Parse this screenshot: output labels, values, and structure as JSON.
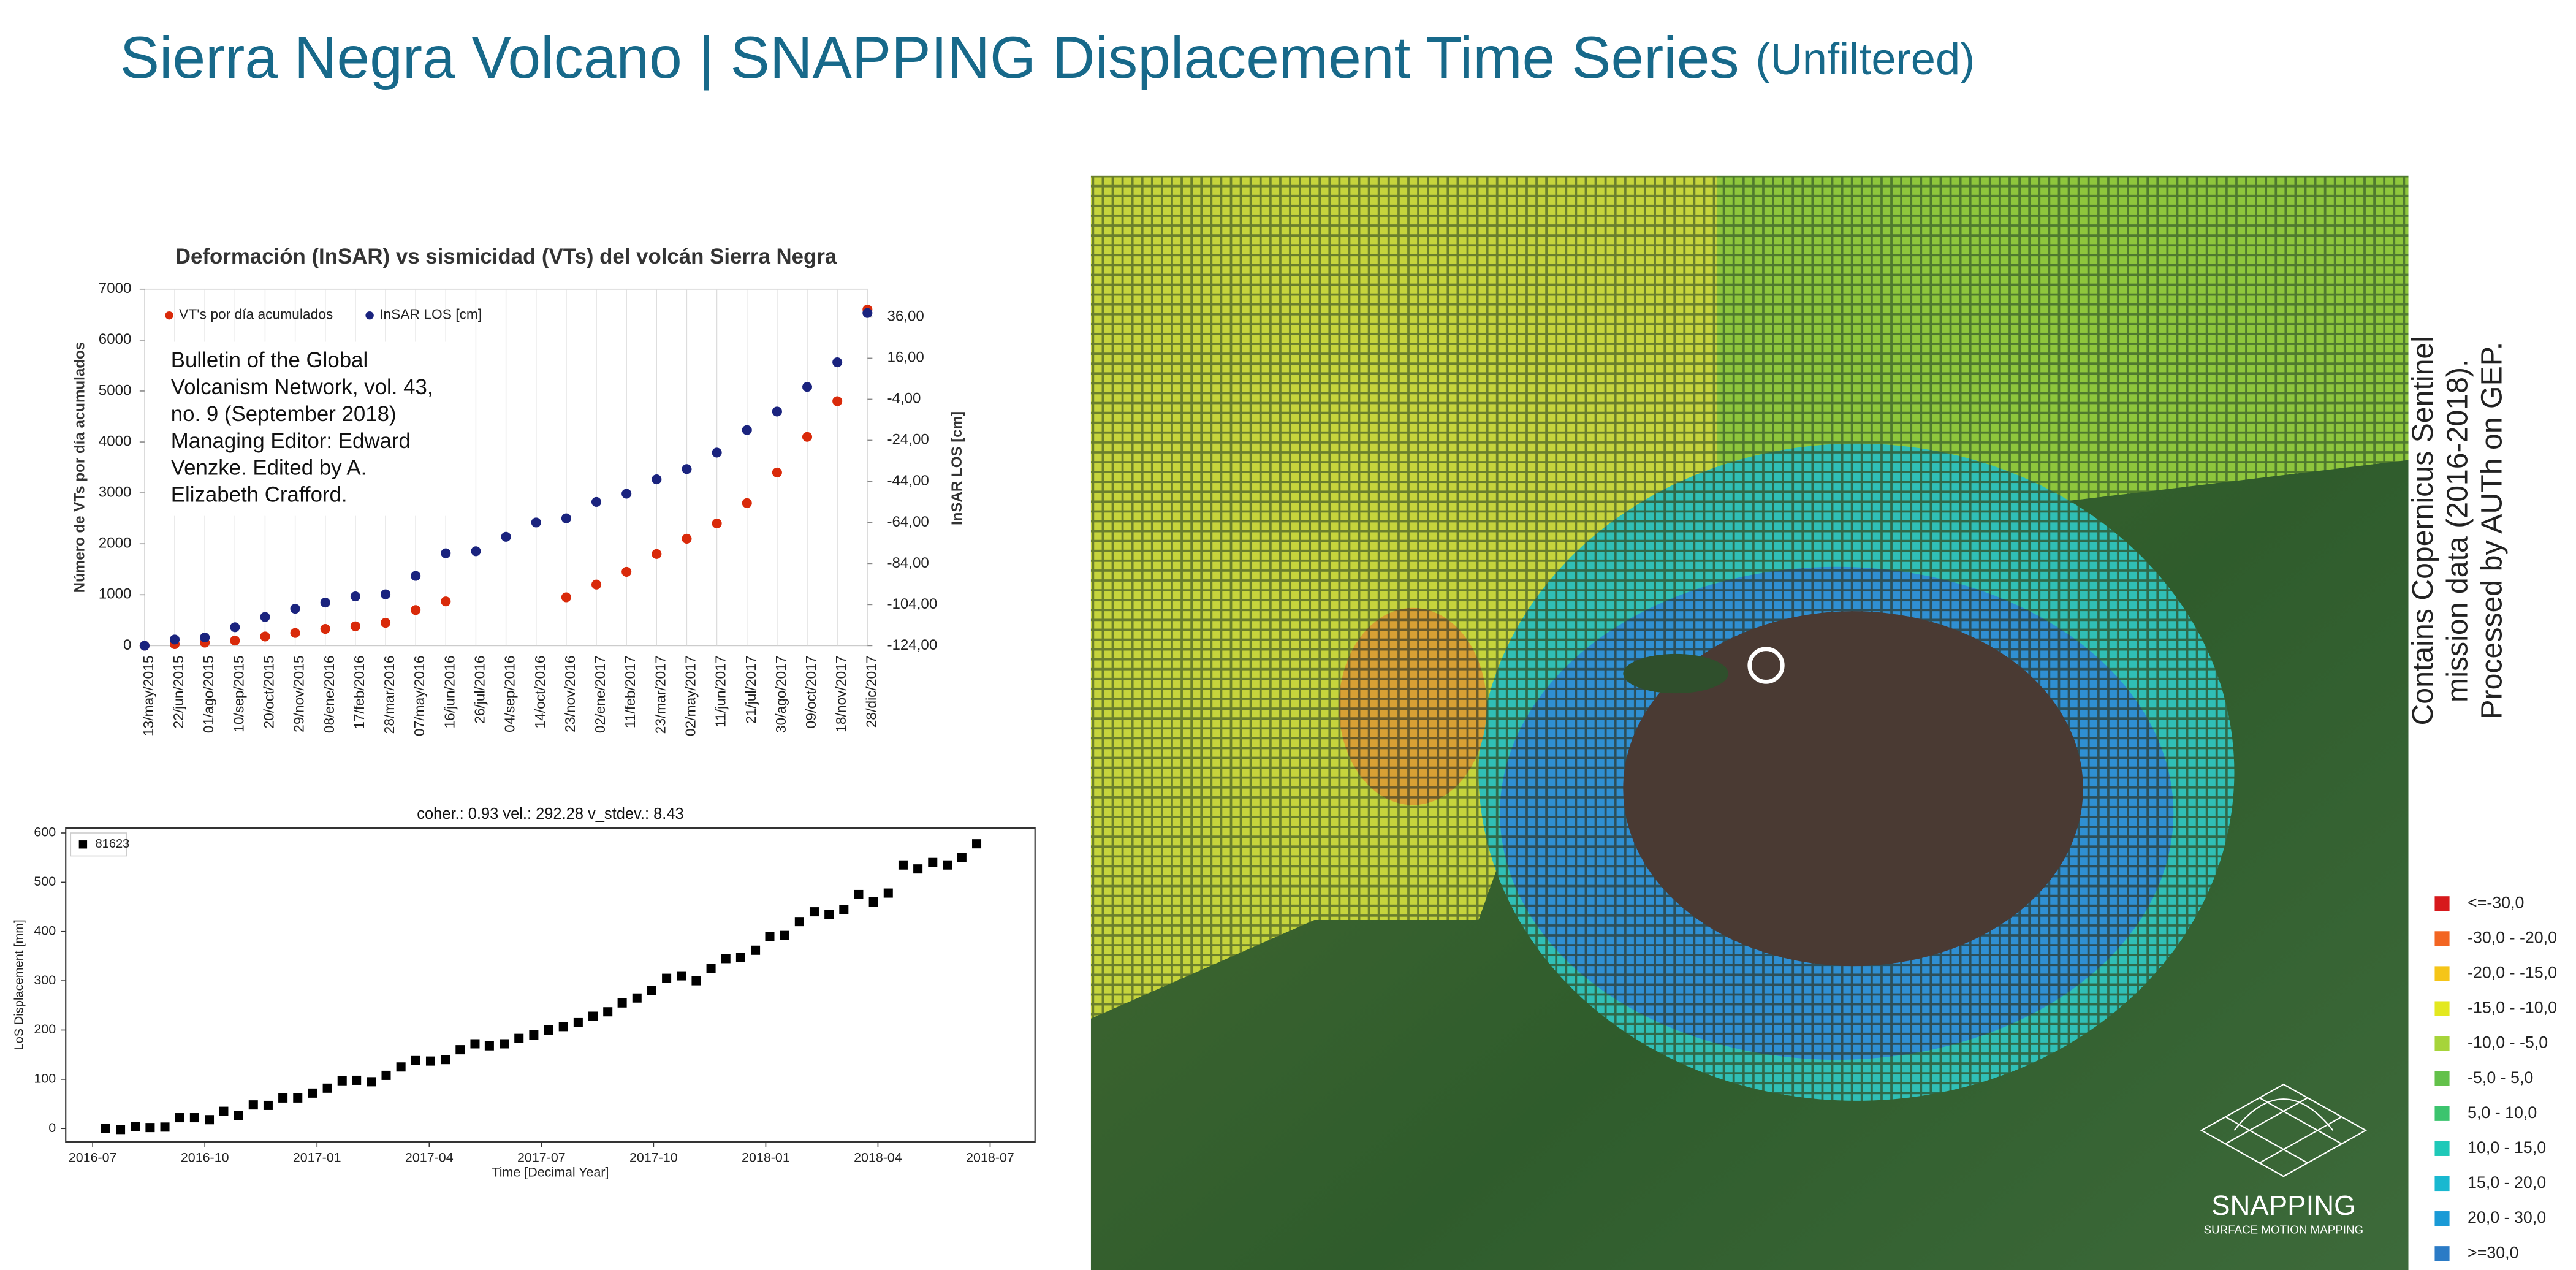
{
  "title": "Sierra Negra Volcano | SNAPPING Displacement Time Series",
  "title_suffix": "(Unfiltered)",
  "chart_data": [
    {
      "type": "dual_axis_scatter",
      "title": "Deformación (InSAR) vs sismicidad  (VTs) del volcán Sierra Negra",
      "y_label": "Número de VTs por día acumulados",
      "y2_label": "InSAR LOS [cm]",
      "annotation": [
        "Bulletin of the Global",
        "Volcanism Network, vol. 43,",
        "no. 9 (September 2018)",
        "Managing Editor: Edward",
        "Venzke. Edited by A.",
        "Elizabeth Crafford."
      ],
      "categories": [
        "13/may/2015",
        "22/jun/2015",
        "01/ago/2015",
        "10/sep/2015",
        "20/oct/2015",
        "29/nov/2015",
        "08/ene/2016",
        "17/feb/2016",
        "28/mar/2016",
        "07/may/2016",
        "16/jun/2016",
        "26/jul/2016",
        "04/sep/2016",
        "14/oct/2016",
        "23/nov/2016",
        "02/ene/2017",
        "11/feb/2017",
        "23/mar/2017",
        "02/may/2017",
        "11/jun/2017",
        "21/jul/2017",
        "30/ago/2017",
        "09/oct/2017",
        "18/nov/2017",
        "28/dic/2017"
      ],
      "series": [
        {
          "name": "VT's por día acumulados",
          "color": "#d92a0a",
          "values": [
            0,
            30,
            60,
            100,
            180,
            250,
            330,
            380,
            450,
            700,
            870,
            null,
            null,
            null,
            950,
            1200,
            1450,
            1800,
            2100,
            2400,
            2800,
            3400,
            4100,
            4800,
            6600
          ]
        },
        {
          "name": "InSAR LOS [cm]",
          "color": "#1a237e",
          "axis": "y2",
          "values": [
            -124,
            -121,
            -120,
            -115,
            -110,
            -106,
            -103,
            -100,
            -99,
            -90,
            -79,
            -78,
            -71,
            -64,
            -62,
            -54,
            -50,
            -43,
            -38,
            -30,
            -19,
            -10,
            2,
            14,
            38
          ]
        }
      ],
      "ylim": [
        0,
        7000
      ],
      "yticks": [
        0,
        1000,
        2000,
        3000,
        4000,
        5000,
        6000,
        7000
      ],
      "y2lim": [
        -124,
        49.6
      ],
      "y2ticks": [
        {
          "value": -124,
          "label": "-124,00"
        },
        {
          "value": -104,
          "label": "-104,00"
        },
        {
          "value": -84,
          "label": "-84,00"
        },
        {
          "value": -64,
          "label": "-64,00"
        },
        {
          "value": -44,
          "label": "-44,00"
        },
        {
          "value": -24,
          "label": "-24,00"
        },
        {
          "value": -4,
          "label": "-4,00"
        },
        {
          "value": 16,
          "label": "16,00"
        },
        {
          "value": 36,
          "label": "36,00"
        }
      ],
      "grid": true
    },
    {
      "type": "scatter",
      "title": "coher.: 0.93 vel.: 292.28 v_stdev.: 8.43",
      "x_label": "Time [Decimal Year]",
      "y_label": "LoS Displacement [mm]",
      "series": [
        {
          "name": "81623",
          "color": "#000000",
          "x": [
            2016.529,
            2016.562,
            2016.595,
            2016.628,
            2016.661,
            2016.694,
            2016.727,
            2016.76,
            2016.792,
            2016.825,
            2016.858,
            2016.891,
            2016.924,
            2016.957,
            2016.99,
            2017.023,
            2017.056,
            2017.088,
            2017.121,
            2017.154,
            2017.187,
            2017.22,
            2017.253,
            2017.286,
            2017.319,
            2017.352,
            2017.384,
            2017.417,
            2017.45,
            2017.483,
            2017.516,
            2017.549,
            2017.582,
            2017.615,
            2017.648,
            2017.68,
            2017.713,
            2017.746,
            2017.779,
            2017.812,
            2017.845,
            2017.878,
            2017.911,
            2017.944,
            2017.977,
            2018.009,
            2018.042,
            2018.075,
            2018.108,
            2018.141,
            2018.174,
            2018.207,
            2018.24,
            2018.273,
            2018.306,
            2018.339,
            2018.372,
            2018.405,
            2018.437,
            2018.47
          ],
          "values": [
            0,
            -2,
            4,
            2,
            3,
            22,
            22,
            18,
            35,
            27,
            48,
            47,
            62,
            62,
            72,
            82,
            97,
            98,
            95,
            108,
            125,
            138,
            137,
            140,
            160,
            172,
            168,
            172,
            183,
            190,
            200,
            207,
            215,
            228,
            237,
            255,
            265,
            280,
            305,
            310,
            300,
            325,
            345,
            348,
            362,
            390,
            392,
            420,
            440,
            435,
            445,
            475,
            460,
            478,
            535,
            527,
            540,
            535,
            550,
            578
          ]
        }
      ],
      "xlim": [
        2016.44,
        2018.6
      ],
      "xticks": [
        {
          "value": 2016.5,
          "label": "2016-07"
        },
        {
          "value": 2016.75,
          "label": "2016-10"
        },
        {
          "value": 2017.0,
          "label": "2017-01"
        },
        {
          "value": 2017.25,
          "label": "2017-04"
        },
        {
          "value": 2017.5,
          "label": "2017-07"
        },
        {
          "value": 2017.75,
          "label": "2017-10"
        },
        {
          "value": 2018.0,
          "label": "2018-01"
        },
        {
          "value": 2018.25,
          "label": "2018-04"
        },
        {
          "value": 2018.5,
          "label": "2018-07"
        }
      ],
      "ylim": [
        -27,
        610
      ],
      "yticks": [
        0,
        100,
        200,
        300,
        400,
        500,
        600
      ]
    }
  ],
  "map": {
    "attribution": [
      "Contains Copernicus Sentinel",
      "mission data (2016-2018).",
      "Processed by AUTh on GEP."
    ],
    "legend": [
      {
        "label": "<=-30,0",
        "color": "#d7191c"
      },
      {
        "label": "-30,0 - -20,0",
        "color": "#f26522"
      },
      {
        "label": "-20,0 - -15,0",
        "color": "#f5c518"
      },
      {
        "label": "-15,0 - -10,0",
        "color": "#e3e81f"
      },
      {
        "label": "-10,0 - -5,0",
        "color": "#a6d43a"
      },
      {
        "label": "-5,0 - 5,0",
        "color": "#63c14a"
      },
      {
        "label": "5,0 - 10,0",
        "color": "#3cc46e"
      },
      {
        "label": "10,0 - 15,0",
        "color": "#1fc9b8"
      },
      {
        "label": "15,0 - 20,0",
        "color": "#19b8d0"
      },
      {
        "label": "20,0 - 30,0",
        "color": "#1a9ad6"
      },
      {
        "label": ">=30,0",
        "color": "#2b7bc6"
      }
    ],
    "logo": "SNAPPING",
    "logo_subtitle": "SURFACE MOTION MAPPING"
  }
}
